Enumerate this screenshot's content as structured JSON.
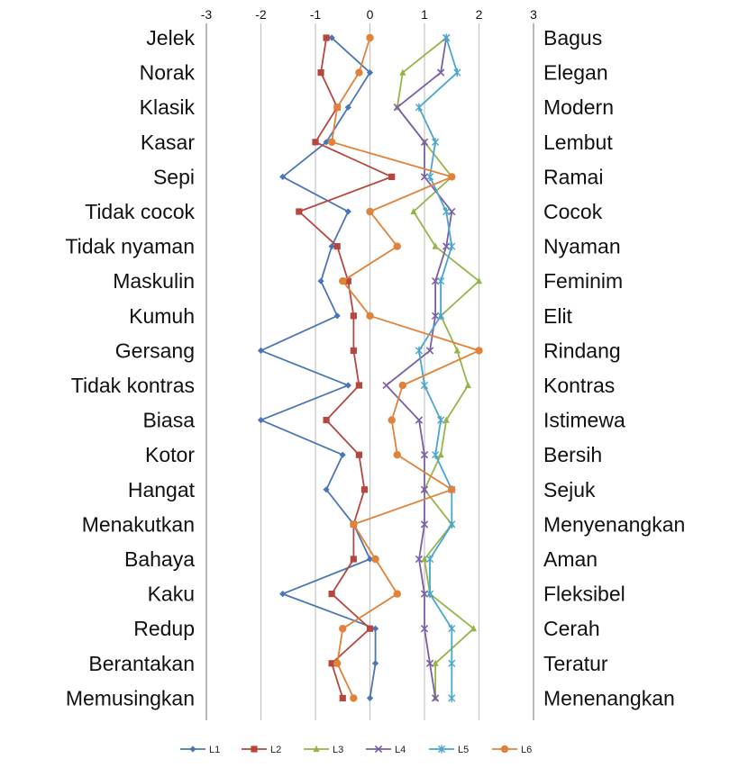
{
  "chart_data": {
    "type": "line",
    "orientation": "horizontal-profile",
    "title": "",
    "xlabel": "",
    "ylabel": "",
    "xlim": [
      -3,
      3
    ],
    "xticks": [
      "-3",
      "-2",
      "-1",
      "0",
      "1",
      "2",
      "3"
    ],
    "grid": true,
    "legend_position": "bottom",
    "left_labels": [
      "Jelek",
      "Norak",
      "Klasik",
      "Kasar",
      "Sepi",
      "Tidak cocok",
      "Tidak nyaman",
      "Maskulin",
      "Kumuh",
      "Gersang",
      "Tidak kontras",
      "Biasa",
      "Kotor",
      "Hangat",
      "Menakutkan",
      "Bahaya",
      "Kaku",
      "Redup",
      "Berantakan",
      "Memusingkan"
    ],
    "right_labels": [
      "Bagus",
      "Elegan",
      "Modern",
      "Lembut",
      "Ramai",
      "Cocok",
      "Nyaman",
      "Feminim",
      "Elit",
      "Rindang",
      "Kontras",
      "Istimewa",
      "Bersih",
      "Sejuk",
      "Menyenangkan",
      "Aman",
      "Fleksibel",
      "Cerah",
      "Teratur",
      "Menenangkan"
    ],
    "series": [
      {
        "name": "L1",
        "color": "#4a76b8",
        "marker": "diamond",
        "values": [
          -0.7,
          0.0,
          -0.4,
          -0.8,
          -1.6,
          -0.4,
          -0.7,
          -0.9,
          -0.6,
          -2.0,
          -0.4,
          -2.0,
          -0.5,
          -0.8,
          -0.3,
          0.0,
          -1.6,
          0.1,
          0.1,
          0.0
        ]
      },
      {
        "name": "L2",
        "color": "#b5473f",
        "marker": "square",
        "values": [
          -0.8,
          -0.9,
          -0.6,
          -1.0,
          0.4,
          -1.3,
          -0.6,
          -0.4,
          -0.3,
          -0.3,
          -0.2,
          -0.8,
          -0.2,
          -0.1,
          -0.3,
          -0.3,
          -0.7,
          0.0,
          -0.7,
          -0.5
        ]
      },
      {
        "name": "L3",
        "color": "#95b548",
        "marker": "triangle",
        "values": [
          1.4,
          0.6,
          0.5,
          1.0,
          1.5,
          0.8,
          1.2,
          2.0,
          1.3,
          1.6,
          1.8,
          1.4,
          1.3,
          1.0,
          1.5,
          1.0,
          1.1,
          1.9,
          1.2,
          1.2
        ]
      },
      {
        "name": "L4",
        "color": "#7a5fa8",
        "marker": "x",
        "values": [
          1.4,
          1.3,
          0.5,
          1.0,
          1.0,
          1.5,
          1.4,
          1.2,
          1.2,
          1.1,
          0.3,
          0.9,
          1.0,
          1.0,
          1.0,
          0.9,
          1.0,
          1.0,
          1.1,
          1.2
        ]
      },
      {
        "name": "L5",
        "color": "#4ba6cc",
        "marker": "star",
        "values": [
          1.4,
          1.6,
          0.9,
          1.2,
          1.1,
          1.4,
          1.5,
          1.3,
          1.3,
          0.9,
          1.0,
          1.3,
          1.2,
          1.5,
          1.5,
          1.1,
          1.1,
          1.5,
          1.5,
          1.5
        ]
      },
      {
        "name": "L6",
        "color": "#e0823a",
        "marker": "circle",
        "values": [
          0.0,
          -0.2,
          -0.6,
          -0.7,
          1.5,
          0.0,
          0.5,
          -0.5,
          0.0,
          2.0,
          0.6,
          0.4,
          0.5,
          1.5,
          -0.3,
          0.1,
          0.5,
          -0.5,
          -0.6,
          -0.3
        ]
      }
    ]
  }
}
